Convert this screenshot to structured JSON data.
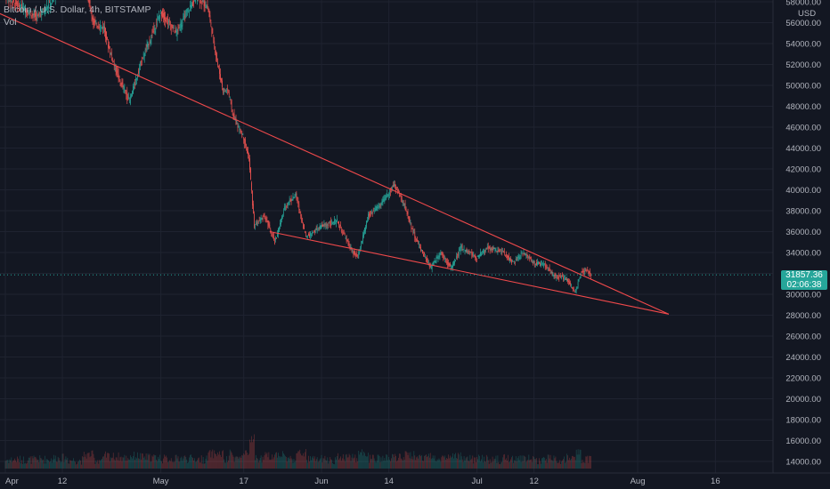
{
  "header": {
    "symbol_line": "Bitcoin / U.S. Dollar, 4h, BITSTAMP",
    "volume_label": "Vol"
  },
  "axis": {
    "unit": "USD",
    "last_price": "31857.36",
    "countdown": "02:06:38"
  },
  "colors": {
    "background": "#131722",
    "up": "#26a69a",
    "down": "#ef5350",
    "trendline": "#f0494b",
    "text": "#b2b5be"
  },
  "chart_data": {
    "type": "candlestick",
    "title": "Bitcoin / U.S. Dollar, 4h, BITSTAMP",
    "ylim": [
      13000,
      58000
    ],
    "y_ticks": [
      14000,
      16000,
      18000,
      20000,
      22000,
      24000,
      26000,
      28000,
      30000,
      32000,
      34000,
      36000,
      38000,
      40000,
      42000,
      44000,
      46000,
      48000,
      50000,
      52000,
      54000,
      56000,
      58000
    ],
    "y_tick_labels": [
      "14000.00",
      "16000.00",
      "18000.00",
      "20000.00",
      "22000.00",
      "24000.00",
      "26000.00",
      "28000.00",
      "30000.00",
      "32000.00",
      "34000.00",
      "36000.00",
      "38000.00",
      "40000.00",
      "42000.00",
      "44000.00",
      "46000.00",
      "48000.00",
      "50000.00",
      "52000.00",
      "54000.00",
      "56000.00",
      "58000.00"
    ],
    "x_labels": [
      "Apr",
      "12",
      "May",
      "17",
      "Jun",
      "14",
      "Jul",
      "12",
      "Aug",
      "16"
    ],
    "x_label_dates": [
      "2021-04-01",
      "2021-04-12",
      "2021-05-01",
      "2021-05-17",
      "2021-06-01",
      "2021-06-14",
      "2021-07-01",
      "2021-07-12",
      "2021-08-01",
      "2021-08-16"
    ],
    "last_price": 31857.36,
    "price_path": [
      [
        "2021-04-01",
        58500
      ],
      [
        "2021-04-04",
        57500
      ],
      [
        "2021-04-07",
        56500
      ],
      [
        "2021-04-10",
        58000
      ],
      [
        "2021-04-13",
        61500
      ],
      [
        "2021-04-16",
        61000
      ],
      [
        "2021-04-18",
        56000
      ],
      [
        "2021-04-20",
        55500
      ],
      [
        "2021-04-21",
        53500
      ],
      [
        "2021-04-23",
        50500
      ],
      [
        "2021-04-25",
        48500
      ],
      [
        "2021-04-27",
        52000
      ],
      [
        "2021-04-29",
        54500
      ],
      [
        "2021-05-01",
        57000
      ],
      [
        "2021-05-04",
        55000
      ],
      [
        "2021-05-06",
        57000
      ],
      [
        "2021-05-08",
        58500
      ],
      [
        "2021-05-10",
        57500
      ],
      [
        "2021-05-12",
        52000
      ],
      [
        "2021-05-13",
        49500
      ],
      [
        "2021-05-14",
        49500
      ],
      [
        "2021-05-15",
        47000
      ],
      [
        "2021-05-17",
        45000
      ],
      [
        "2021-05-18",
        43000
      ],
      [
        "2021-05-19",
        36500
      ],
      [
        "2021-05-21",
        37500
      ],
      [
        "2021-05-23",
        35000
      ],
      [
        "2021-05-25",
        38500
      ],
      [
        "2021-05-27",
        39500
      ],
      [
        "2021-05-29",
        35500
      ],
      [
        "2021-06-01",
        36500
      ],
      [
        "2021-06-04",
        37000
      ],
      [
        "2021-06-07",
        34000
      ],
      [
        "2021-06-08",
        33500
      ],
      [
        "2021-06-10",
        37500
      ],
      [
        "2021-06-13",
        39000
      ],
      [
        "2021-06-15",
        40500
      ],
      [
        "2021-06-17",
        38500
      ],
      [
        "2021-06-19",
        35500
      ],
      [
        "2021-06-21",
        33500
      ],
      [
        "2021-06-22",
        32500
      ],
      [
        "2021-06-24",
        34000
      ],
      [
        "2021-06-26",
        32500
      ],
      [
        "2021-06-28",
        34500
      ],
      [
        "2021-07-01",
        33500
      ],
      [
        "2021-07-03",
        34500
      ],
      [
        "2021-07-06",
        34000
      ],
      [
        "2021-07-08",
        33000
      ],
      [
        "2021-07-10",
        34000
      ],
      [
        "2021-07-12",
        33000
      ],
      [
        "2021-07-14",
        32800
      ],
      [
        "2021-07-16",
        31700
      ],
      [
        "2021-07-18",
        31600
      ],
      [
        "2021-07-20",
        30200
      ],
      [
        "2021-07-21",
        32000
      ],
      [
        "2021-07-22",
        32300
      ],
      [
        "2021-07-23",
        31857
      ]
    ],
    "trendlines": [
      {
        "name": "upper",
        "from": [
          "2021-03-29",
          57300
        ],
        "to": [
          "2021-08-07",
          28100
        ]
      },
      {
        "name": "lower",
        "from": [
          "2021-05-22",
          36000
        ],
        "to": [
          "2021-08-07",
          28100
        ]
      }
    ],
    "grid": true,
    "legend": "none"
  }
}
